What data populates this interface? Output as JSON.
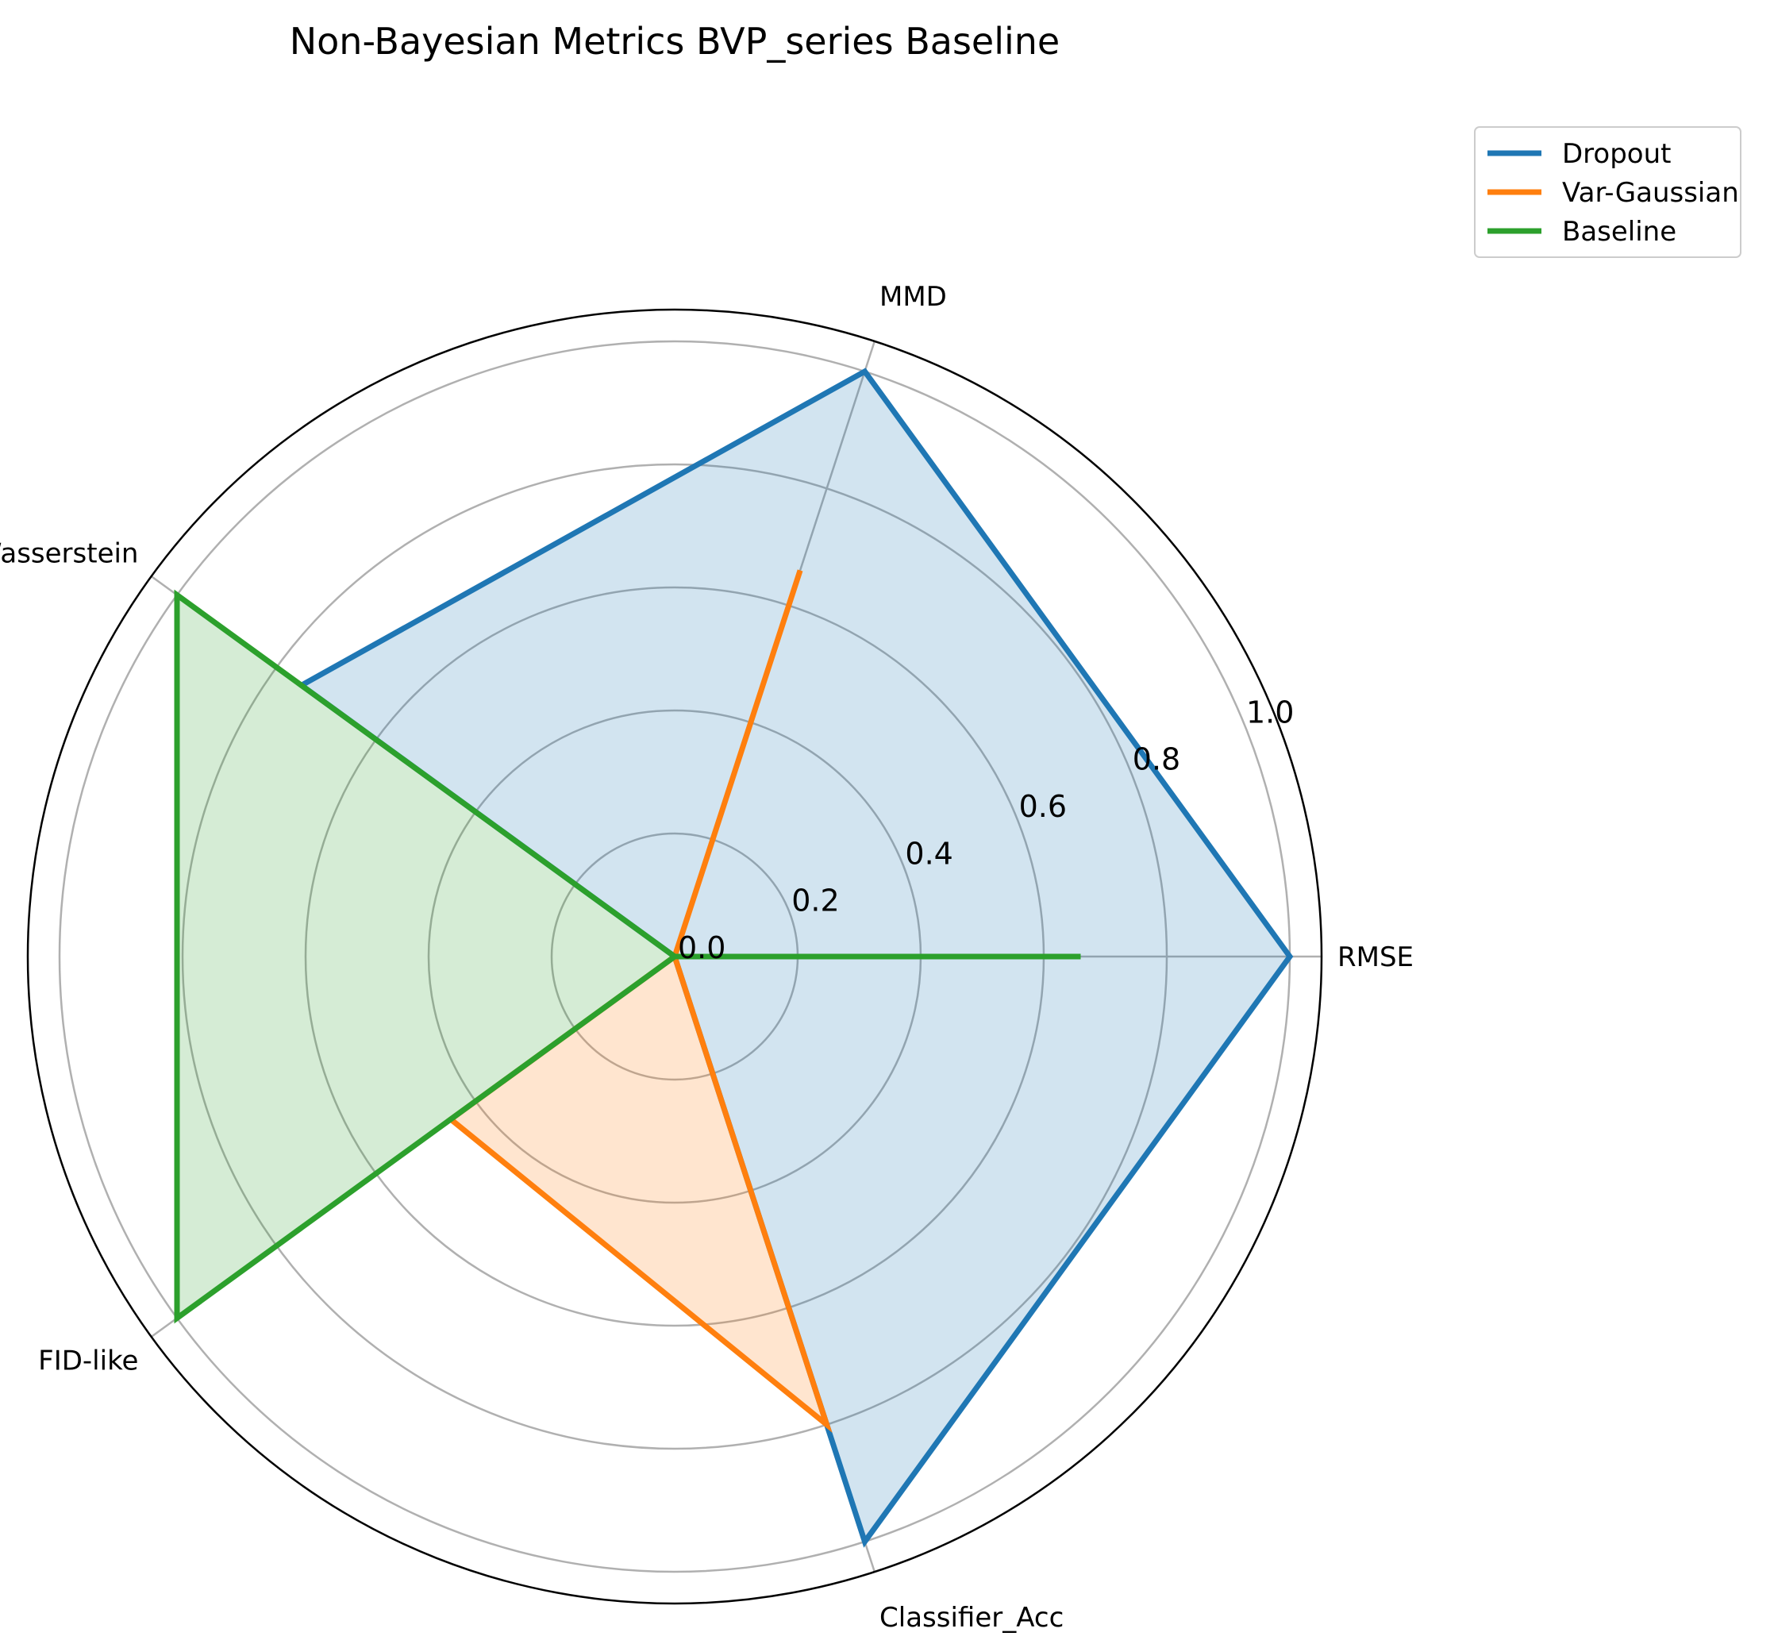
{
  "chart_data": {
    "type": "radar",
    "title": "Non-Bayesian Metrics BVP_series Baseline",
    "categories": [
      "RMSE",
      "MMD",
      "Wasserstein",
      "FID-like",
      "Classifier_Acc"
    ],
    "radial_range": [
      0,
      1.0
    ],
    "radial_ticks": [
      "0.0",
      "0.2",
      "0.4",
      "0.6",
      "0.8",
      "1.0"
    ],
    "radial_tick_values": [
      0,
      0.2,
      0.4,
      0.6,
      0.8,
      1.0
    ],
    "grid": true,
    "legend_position": "top-right, outside",
    "series": [
      {
        "name": "Dropout",
        "color": "#1f77b4",
        "values": [
          1.0,
          1.0,
          0.75,
          0.0,
          1.0
        ]
      },
      {
        "name": "Var-Gaussian",
        "color": "#ff7f0e",
        "values": [
          0.0,
          0.66,
          0.0,
          0.45,
          0.8
        ]
      },
      {
        "name": "Baseline",
        "color": "#2ca02c",
        "values": [
          0.66,
          0.0,
          1.0,
          1.0,
          0.0
        ]
      }
    ]
  }
}
